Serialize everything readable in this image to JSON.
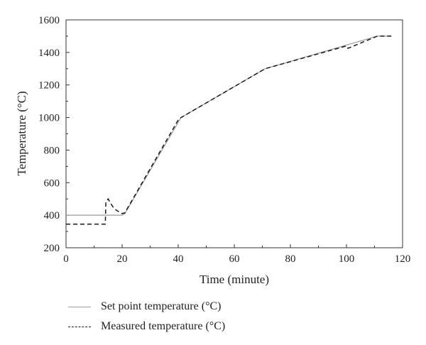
{
  "chart_data": {
    "type": "line",
    "title": "",
    "xlabel": "Time (minute)",
    "ylabel": "Temperature (°C)",
    "xlim": [
      0,
      120
    ],
    "ylim": [
      200,
      1600
    ],
    "xticks": [
      0,
      20,
      40,
      60,
      80,
      100,
      120
    ],
    "yticks": [
      200,
      400,
      600,
      800,
      1000,
      1200,
      1400,
      1600
    ],
    "grid": false,
    "legend_position": "bottom-left",
    "series": [
      {
        "name": "Set point temperature (°C)",
        "style": "solid",
        "color": "#9a9a9a",
        "x": [
          0,
          20,
          21,
          41,
          71,
          111,
          116
        ],
        "y": [
          400,
          400,
          410,
          1000,
          1300,
          1500,
          1500
        ]
      },
      {
        "name": "Measured temperature (°C)",
        "style": "dashed",
        "color": "#1a1a1a",
        "x": [
          0,
          14,
          14.2,
          15,
          16,
          17,
          18,
          19,
          20,
          21,
          40,
          41,
          71,
          100,
          100.5,
          111,
          116
        ],
        "y": [
          345,
          345,
          480,
          500,
          470,
          445,
          430,
          420,
          410,
          415,
          985,
          1000,
          1300,
          1440,
          1425,
          1500,
          1500
        ]
      }
    ]
  }
}
